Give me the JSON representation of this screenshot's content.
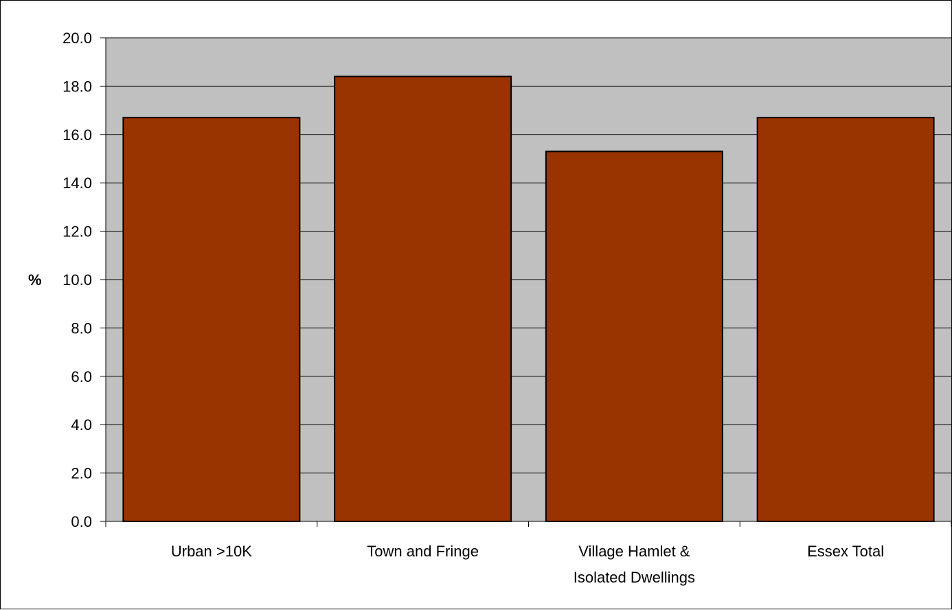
{
  "chart_data": {
    "type": "bar",
    "title": "",
    "xlabel": "",
    "ylabel": "%",
    "ylim": [
      0,
      20
    ],
    "ytick_step": 2,
    "ytick_labels": [
      "0.0",
      "2.0",
      "4.0",
      "6.0",
      "8.0",
      "10.0",
      "12.0",
      "14.0",
      "16.0",
      "18.0",
      "20.0"
    ],
    "categories": [
      [
        "Urban >10K"
      ],
      [
        "Town and Fringe"
      ],
      [
        "Village Hamlet &",
        "Isolated Dwellings"
      ],
      [
        "Essex Total"
      ]
    ],
    "values": [
      16.7,
      18.4,
      15.3,
      16.7
    ],
    "grid": true,
    "legend": "none",
    "colors": {
      "bar": "#993300",
      "bar_edge": "#000000",
      "plot_background": "#C0C0C0",
      "gridline": "#000000"
    }
  }
}
